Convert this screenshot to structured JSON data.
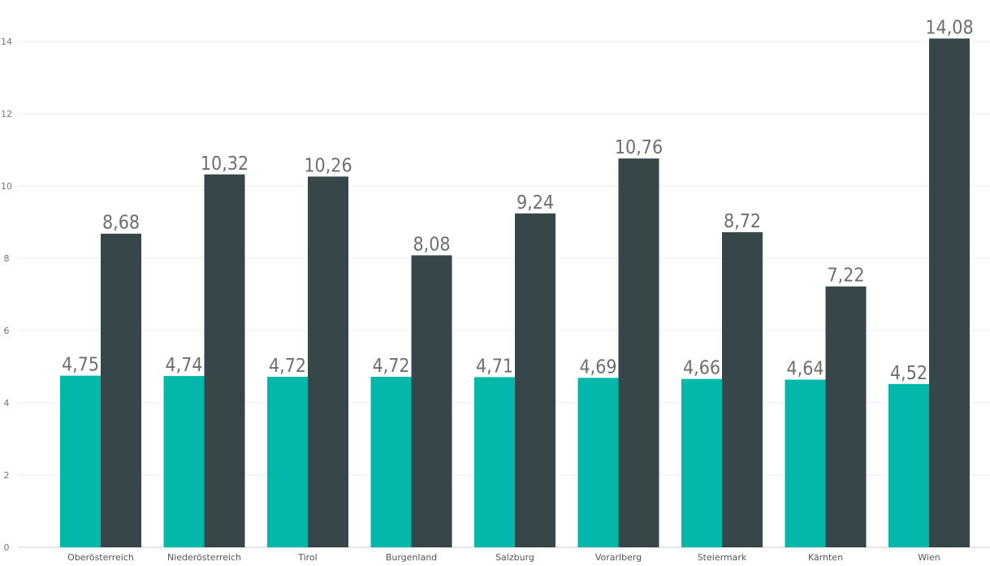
{
  "chart_data": {
    "type": "bar",
    "title": "",
    "xlabel": "",
    "ylabel": "",
    "ylim": [
      0,
      14
    ],
    "yticks": [
      "0",
      "2",
      "4",
      "6",
      "8",
      "10",
      "12",
      "14"
    ],
    "grid": true,
    "legend": "none",
    "categories": [
      "Oberösterreich",
      "Niederösterreich",
      "Tirol",
      "Burgenland",
      "Salzburg",
      "Vorarlberg",
      "Steiermark",
      "Kärnten",
      "Wien"
    ],
    "series": [
      {
        "color": "#01b8aa",
        "values": [
          4.75,
          4.74,
          4.72,
          4.72,
          4.71,
          4.69,
          4.66,
          4.64,
          4.52
        ],
        "labels": [
          "4,75",
          "4,74",
          "4,72",
          "4,72",
          "4,71",
          "4,69",
          "4,66",
          "4,64",
          "4,52"
        ]
      },
      {
        "color": "#374649",
        "values": [
          8.68,
          10.32,
          10.26,
          8.08,
          9.24,
          10.76,
          8.72,
          7.22,
          14.08
        ],
        "labels": [
          "8,68",
          "10,32",
          "10,26",
          "8,08",
          "9,24",
          "10,76",
          "8,72",
          "7,22",
          "14,08"
        ]
      }
    ]
  }
}
